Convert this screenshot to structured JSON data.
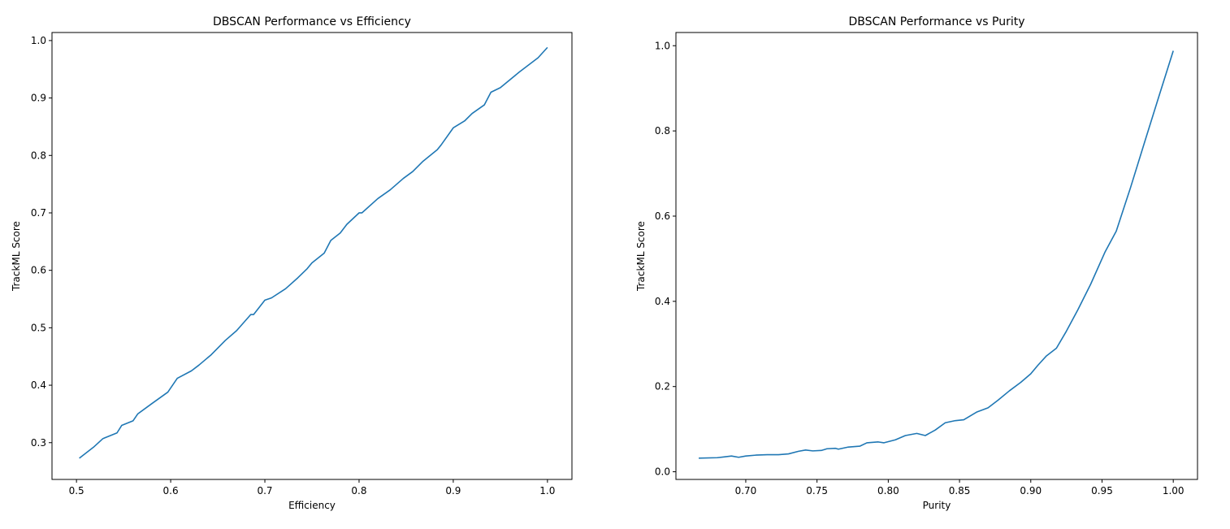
{
  "chart_data": [
    {
      "type": "line",
      "title": "DBSCAN Performance vs Efficiency",
      "xlabel": "Efficiency",
      "ylabel": "TrackML Score",
      "xlim": [
        0.474,
        1.026
      ],
      "ylim": [
        0.236,
        1.014
      ],
      "xticks": [
        0.5,
        0.6,
        0.7,
        0.8,
        0.9,
        1.0
      ],
      "xtick_labels": [
        "0.5",
        "0.6",
        "0.7",
        "0.8",
        "0.9",
        "1.0"
      ],
      "yticks": [
        0.3,
        0.4,
        0.5,
        0.6,
        0.7,
        0.8,
        0.9,
        1.0
      ],
      "ytick_labels": [
        "0.3",
        "0.4",
        "0.5",
        "0.6",
        "0.7",
        "0.8",
        "0.9",
        "1.0"
      ],
      "grid": false,
      "color": "#1f77b4",
      "series": [
        {
          "x": [
            0.503,
            0.518,
            0.528,
            0.543,
            0.548,
            0.56,
            0.565,
            0.58,
            0.597,
            0.607,
            0.622,
            0.63,
            0.643,
            0.658,
            0.67,
            0.685,
            0.688,
            0.7,
            0.707,
            0.722,
            0.735,
            0.745,
            0.75,
            0.763,
            0.77,
            0.78,
            0.787,
            0.8,
            0.803,
            0.82,
            0.833,
            0.847,
            0.857,
            0.868,
            0.883,
            0.887,
            0.9,
            0.912,
            0.92,
            0.933,
            0.94,
            0.95,
            0.97,
            0.99,
            1.0
          ],
          "y": [
            0.273,
            0.292,
            0.307,
            0.317,
            0.33,
            0.338,
            0.35,
            0.368,
            0.388,
            0.412,
            0.425,
            0.435,
            0.453,
            0.478,
            0.495,
            0.523,
            0.523,
            0.548,
            0.552,
            0.568,
            0.587,
            0.603,
            0.613,
            0.63,
            0.652,
            0.665,
            0.68,
            0.7,
            0.7,
            0.725,
            0.74,
            0.76,
            0.772,
            0.79,
            0.81,
            0.818,
            0.848,
            0.86,
            0.873,
            0.888,
            0.91,
            0.918,
            0.945,
            0.97,
            0.988
          ]
        }
      ]
    },
    {
      "type": "line",
      "title": "DBSCAN Performance vs Purity",
      "xlabel": "Purity",
      "ylabel": "TrackML Score",
      "xlim": [
        0.651,
        1.017
      ],
      "ylim": [
        -0.018,
        1.031
      ],
      "xticks": [
        0.7,
        0.75,
        0.8,
        0.85,
        0.9,
        0.95,
        1.0
      ],
      "xtick_labels": [
        "0.70",
        "0.75",
        "0.80",
        "0.85",
        "0.90",
        "0.95",
        "1.00"
      ],
      "yticks": [
        0.0,
        0.2,
        0.4,
        0.6,
        0.8,
        1.0
      ],
      "ytick_labels": [
        "0.0",
        "0.2",
        "0.4",
        "0.6",
        "0.8",
        "1.0"
      ],
      "grid": false,
      "color": "#1f77b4",
      "series": [
        {
          "x": [
            0.667,
            0.68,
            0.69,
            0.695,
            0.7,
            0.707,
            0.715,
            0.723,
            0.73,
            0.737,
            0.742,
            0.747,
            0.753,
            0.757,
            0.763,
            0.765,
            0.772,
            0.78,
            0.785,
            0.793,
            0.797,
            0.805,
            0.812,
            0.82,
            0.826,
            0.833,
            0.84,
            0.847,
            0.853,
            0.862,
            0.87,
            0.877,
            0.885,
            0.893,
            0.9,
            0.905,
            0.911,
            0.918,
            0.925,
            0.933,
            0.942,
            0.952,
            0.96,
            0.97,
            0.98,
            0.99,
            1.0
          ],
          "y": [
            0.032,
            0.033,
            0.037,
            0.034,
            0.037,
            0.039,
            0.04,
            0.04,
            0.042,
            0.048,
            0.051,
            0.049,
            0.05,
            0.054,
            0.055,
            0.053,
            0.058,
            0.06,
            0.068,
            0.07,
            0.068,
            0.075,
            0.085,
            0.09,
            0.085,
            0.098,
            0.115,
            0.12,
            0.122,
            0.14,
            0.15,
            0.168,
            0.19,
            0.21,
            0.23,
            0.25,
            0.272,
            0.29,
            0.33,
            0.38,
            0.44,
            0.515,
            0.565,
            0.667,
            0.775,
            0.882,
            0.988
          ]
        }
      ]
    }
  ]
}
